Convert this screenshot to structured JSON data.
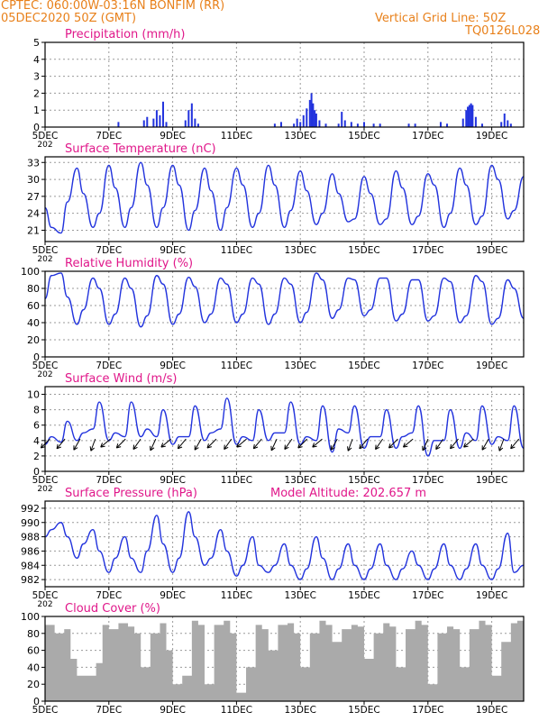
{
  "header": {
    "line1": "CPTEC:   060:00W-03:16N   BONFIM (RR)",
    "line2": "05DEC2020 50Z (GMT)",
    "right1": "Vertical Grid Line: 50Z",
    "right2": "TQ0126L028"
  },
  "colors": {
    "header_text": "#e8801a",
    "title_text": "#e0178a",
    "series": "#2233dd",
    "cloud_fill": "#aaaaaa",
    "wind_arrow": "#000000",
    "grid": "#9a9a9a"
  },
  "x_axis": {
    "tick_labels": [
      "5DEC",
      "7DEC",
      "9DEC",
      "11DEC",
      "13DEC",
      "15DEC",
      "17DEC",
      "19DEC"
    ],
    "tick_days": [
      5,
      7,
      9,
      11,
      13,
      15,
      17,
      19
    ],
    "range_days": [
      5,
      20
    ],
    "clipped_label": "202"
  },
  "chart_data": [
    {
      "id": "precip",
      "type": "bar",
      "title": "Precipitation (mm/h)",
      "ylim": [
        0,
        5
      ],
      "yticks": [
        0,
        1,
        2,
        3,
        4,
        5
      ],
      "grid": true,
      "x": [
        7.3,
        8.1,
        8.2,
        8.4,
        8.5,
        8.6,
        8.7,
        8.8,
        9.4,
        9.5,
        9.6,
        9.7,
        9.8,
        12.2,
        12.4,
        12.8,
        12.9,
        13.0,
        13.1,
        13.2,
        13.3,
        13.35,
        13.4,
        13.45,
        13.5,
        13.6,
        13.8,
        14.2,
        14.3,
        14.4,
        14.6,
        14.8,
        15.0,
        15.3,
        15.5,
        16.4,
        16.6,
        17.4,
        17.6,
        18.1,
        18.2,
        18.25,
        18.3,
        18.35,
        18.4,
        18.5,
        18.7,
        19.3,
        19.4,
        19.5,
        19.6
      ],
      "values": [
        0.3,
        0.4,
        0.6,
        0.5,
        1.0,
        0.7,
        1.5,
        0.3,
        0.4,
        1.0,
        1.4,
        0.5,
        0.2,
        0.2,
        0.3,
        0.2,
        0.5,
        0.3,
        0.7,
        1.1,
        1.6,
        2.0,
        1.4,
        1.0,
        0.8,
        0.4,
        0.2,
        0.2,
        0.9,
        0.4,
        0.3,
        0.2,
        0.3,
        0.2,
        0.2,
        0.2,
        0.2,
        0.3,
        0.2,
        0.5,
        1.0,
        1.2,
        1.3,
        1.4,
        1.3,
        0.6,
        0.2,
        0.3,
        0.8,
        0.4,
        0.2
      ],
      "ylabel": "",
      "xlabel": ""
    },
    {
      "id": "temperature",
      "type": "line",
      "title": "Surface Temperature (nC)",
      "ylim": [
        19,
        34
      ],
      "yticks": [
        21,
        24,
        27,
        30,
        33
      ],
      "grid": true,
      "x": [
        5.0,
        5.2,
        5.5,
        5.7,
        6.0,
        6.2,
        6.5,
        6.7,
        7.0,
        7.2,
        7.5,
        7.7,
        8.0,
        8.2,
        8.5,
        8.7,
        9.0,
        9.2,
        9.5,
        9.7,
        10.0,
        10.2,
        10.5,
        10.7,
        11.0,
        11.2,
        11.5,
        11.7,
        12.0,
        12.2,
        12.5,
        12.7,
        13.0,
        13.2,
        13.5,
        13.7,
        14.0,
        14.2,
        14.5,
        14.7,
        15.0,
        15.2,
        15.5,
        15.7,
        16.0,
        16.2,
        16.5,
        16.7,
        17.0,
        17.2,
        17.5,
        17.7,
        18.0,
        18.2,
        18.5,
        18.7,
        19.0,
        19.2,
        19.5,
        19.7,
        20.0
      ],
      "series": [
        {
          "values": [
            25,
            21.5,
            20.5,
            26,
            32,
            27.5,
            21.5,
            24,
            32.5,
            28.5,
            21.5,
            25,
            33,
            29,
            21.5,
            25,
            32.5,
            29,
            21,
            24.5,
            32,
            28,
            21,
            25,
            32,
            29,
            21.5,
            24,
            32.5,
            29,
            21.5,
            24.5,
            31.5,
            28,
            22,
            24,
            31,
            27.5,
            22.5,
            23,
            30.5,
            27.5,
            22,
            23,
            31.5,
            28.5,
            22,
            23.5,
            31,
            29,
            21.5,
            24,
            32,
            29,
            22,
            23.5,
            32.5,
            30,
            23,
            24.5,
            30.5
          ]
        }
      ],
      "ylabel": "",
      "xlabel": ""
    },
    {
      "id": "humidity",
      "type": "line",
      "title": "Relative Humidity (%)",
      "ylim": [
        0,
        100
      ],
      "yticks": [
        0,
        20,
        40,
        60,
        80,
        100
      ],
      "grid": true,
      "x": [
        5.0,
        5.2,
        5.5,
        5.7,
        6.0,
        6.2,
        6.5,
        6.7,
        7.0,
        7.2,
        7.5,
        7.7,
        8.0,
        8.2,
        8.5,
        8.7,
        9.0,
        9.2,
        9.5,
        9.7,
        10.0,
        10.2,
        10.5,
        10.7,
        11.0,
        11.2,
        11.5,
        11.7,
        12.0,
        12.2,
        12.5,
        12.7,
        13.0,
        13.2,
        13.5,
        13.7,
        14.0,
        14.2,
        14.5,
        14.7,
        15.0,
        15.2,
        15.5,
        15.7,
        16.0,
        16.2,
        16.5,
        16.7,
        17.0,
        17.2,
        17.5,
        17.7,
        18.0,
        18.2,
        18.5,
        18.7,
        19.0,
        19.2,
        19.5,
        19.7,
        20.0
      ],
      "series": [
        {
          "values": [
            68,
            95,
            98,
            70,
            38,
            55,
            92,
            80,
            38,
            50,
            92,
            80,
            35,
            48,
            95,
            85,
            38,
            50,
            93,
            82,
            40,
            50,
            92,
            85,
            40,
            50,
            92,
            85,
            38,
            50,
            92,
            85,
            40,
            52,
            98,
            90,
            45,
            55,
            92,
            90,
            48,
            55,
            92,
            92,
            42,
            50,
            90,
            90,
            42,
            48,
            92,
            88,
            40,
            48,
            95,
            88,
            38,
            45,
            90,
            80,
            45
          ]
        }
      ],
      "ylabel": "",
      "xlabel": ""
    },
    {
      "id": "wind",
      "type": "line",
      "title": "Surface Wind (m/s)",
      "ylim": [
        0,
        11
      ],
      "yticks": [
        0,
        2,
        4,
        6,
        8,
        10
      ],
      "grid": true,
      "x": [
        5.0,
        5.2,
        5.5,
        5.7,
        6.0,
        6.2,
        6.5,
        6.7,
        7.0,
        7.2,
        7.5,
        7.7,
        8.0,
        8.2,
        8.5,
        8.7,
        9.0,
        9.2,
        9.5,
        9.7,
        10.0,
        10.2,
        10.5,
        10.7,
        11.0,
        11.2,
        11.5,
        11.7,
        12.0,
        12.2,
        12.5,
        12.7,
        13.0,
        13.2,
        13.5,
        13.7,
        14.0,
        14.2,
        14.5,
        14.7,
        15.0,
        15.2,
        15.5,
        15.7,
        16.0,
        16.2,
        16.5,
        16.7,
        17.0,
        17.2,
        17.5,
        17.7,
        18.0,
        18.2,
        18.5,
        18.7,
        19.0,
        19.2,
        19.5,
        19.7,
        20.0
      ],
      "series": [
        {
          "values": [
            3.5,
            4.5,
            3.8,
            6.5,
            4.0,
            5.0,
            5.5,
            9.0,
            4.0,
            5.0,
            4.5,
            9.0,
            4.5,
            5.5,
            4.5,
            8.0,
            3.5,
            4.5,
            4.5,
            8.5,
            4.0,
            5.0,
            5.5,
            9.5,
            3.5,
            4.5,
            4.0,
            8.0,
            4.0,
            5.0,
            5.0,
            9.0,
            3.5,
            4.5,
            4.0,
            8.5,
            2.5,
            5.5,
            5.0,
            8.5,
            3.0,
            4.5,
            4.5,
            8.0,
            3.0,
            4.5,
            5.0,
            8.5,
            2.0,
            4.0,
            4.0,
            8.0,
            3.0,
            5.0,
            4.0,
            8.5,
            3.5,
            4.5,
            4.0,
            8.5,
            3.0
          ]
        }
      ],
      "arrow_directions_deg": [
        225,
        220,
        210,
        200,
        230,
        225,
        215,
        205,
        230,
        220,
        210,
        225,
        215,
        230,
        220,
        205,
        215,
        225,
        230,
        210,
        200,
        220,
        215,
        225,
        230,
        205,
        215,
        220,
        230,
        210,
        200,
        220
      ],
      "ylabel": "",
      "xlabel": ""
    },
    {
      "id": "pressure",
      "type": "line",
      "title": "Surface Pressure (hPa)",
      "annotation": "Model Altitude: 202.657 m",
      "ylim": [
        981,
        993
      ],
      "yticks": [
        982,
        984,
        986,
        988,
        990,
        992
      ],
      "grid": true,
      "x": [
        5.0,
        5.2,
        5.5,
        5.7,
        6.0,
        6.2,
        6.5,
        6.7,
        7.0,
        7.2,
        7.5,
        7.7,
        8.0,
        8.2,
        8.5,
        8.7,
        9.0,
        9.2,
        9.5,
        9.7,
        10.0,
        10.2,
        10.5,
        10.7,
        11.0,
        11.2,
        11.5,
        11.7,
        12.0,
        12.2,
        12.5,
        12.7,
        13.0,
        13.2,
        13.5,
        13.7,
        14.0,
        14.2,
        14.5,
        14.7,
        15.0,
        15.2,
        15.5,
        15.7,
        16.0,
        16.2,
        16.5,
        16.7,
        17.0,
        17.2,
        17.5,
        17.7,
        18.0,
        18.2,
        18.5,
        18.7,
        19.0,
        19.2,
        19.5,
        19.7,
        20.0
      ],
      "series": [
        {
          "values": [
            988,
            989,
            990,
            988,
            985,
            987,
            989,
            986,
            983,
            985,
            988,
            985,
            983,
            986,
            991,
            987,
            983,
            985,
            991.5,
            988,
            984,
            985,
            989,
            986,
            982.5,
            984,
            988,
            984,
            983,
            984,
            987,
            984,
            982,
            983.5,
            988,
            985,
            982,
            983.5,
            987,
            984,
            982,
            983.5,
            987,
            984,
            982,
            983.5,
            986,
            984,
            982,
            983.5,
            987,
            984,
            982,
            983.5,
            987,
            984,
            982,
            983.5,
            988.5,
            983,
            984
          ]
        }
      ],
      "ylabel": "",
      "xlabel": ""
    },
    {
      "id": "cloud",
      "type": "area",
      "title": "Cloud Cover (%)",
      "ylim": [
        0,
        100
      ],
      "yticks": [
        0,
        20,
        40,
        60,
        80,
        100
      ],
      "grid": true,
      "x": [
        5.0,
        5.3,
        5.6,
        5.8,
        6.0,
        6.3,
        6.6,
        6.8,
        7.0,
        7.3,
        7.6,
        7.8,
        8.0,
        8.3,
        8.6,
        8.8,
        9.0,
        9.3,
        9.6,
        9.8,
        10.0,
        10.3,
        10.6,
        10.8,
        11.0,
        11.3,
        11.6,
        11.8,
        12.0,
        12.3,
        12.6,
        12.8,
        13.0,
        13.3,
        13.6,
        13.8,
        14.0,
        14.3,
        14.6,
        14.8,
        15.0,
        15.3,
        15.6,
        15.8,
        16.0,
        16.3,
        16.6,
        16.8,
        17.0,
        17.3,
        17.6,
        17.8,
        18.0,
        18.3,
        18.6,
        18.8,
        19.0,
        19.3,
        19.6,
        19.8,
        20.0
      ],
      "series": [
        {
          "values": [
            90,
            80,
            85,
            50,
            30,
            30,
            45,
            90,
            85,
            92,
            88,
            80,
            40,
            80,
            92,
            60,
            20,
            30,
            95,
            90,
            20,
            90,
            95,
            80,
            10,
            40,
            90,
            85,
            60,
            90,
            92,
            80,
            40,
            80,
            95,
            90,
            70,
            85,
            90,
            88,
            50,
            80,
            92,
            88,
            40,
            85,
            95,
            90,
            20,
            80,
            88,
            85,
            40,
            85,
            95,
            90,
            30,
            70,
            92,
            95,
            85
          ]
        }
      ],
      "ylabel": "",
      "xlabel": ""
    }
  ]
}
